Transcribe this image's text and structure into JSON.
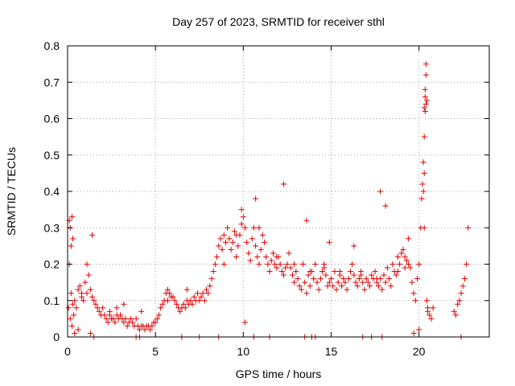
{
  "chart_data": {
    "type": "scatter",
    "title": "Day 257 of 2023, SRMTID for receiver sthl",
    "xlabel": "GPS time / hours",
    "ylabel": "SRMTID / TECUs",
    "xlim": [
      0,
      24
    ],
    "ylim": [
      0,
      0.8
    ],
    "xticks": [
      0,
      5,
      10,
      15,
      20
    ],
    "yticks": [
      0,
      0.1,
      0.2,
      0.3,
      0.4,
      0.5,
      0.6,
      0.7,
      0.8
    ],
    "xtick_labels": [
      "0",
      "5",
      "10",
      "15",
      "20"
    ],
    "ytick_labels": [
      "0",
      "0.1",
      "0.2",
      "0.3",
      "0.4",
      "0.5",
      "0.6",
      "0.7",
      "0.8"
    ],
    "grid": true,
    "marker": "+",
    "color": "#e00000",
    "series": [
      {
        "name": "SRMTID",
        "x": [
          0.05,
          0.1,
          0.15,
          0.2,
          0.25,
          0.3,
          0.35,
          0.4,
          0.5,
          0.6,
          0.7,
          0.8,
          0.9,
          1.0,
          1.1,
          1.2,
          1.3,
          1.4,
          1.5,
          1.6,
          1.7,
          1.8,
          1.9,
          2.0,
          2.1,
          2.2,
          2.3,
          2.4,
          2.5,
          2.6,
          2.7,
          2.8,
          2.9,
          3.0,
          3.1,
          3.2,
          3.3,
          3.4,
          3.5,
          3.6,
          3.7,
          3.8,
          3.9,
          4.0,
          4.1,
          4.2,
          4.3,
          4.4,
          4.5,
          4.6,
          4.7,
          4.8,
          4.9,
          5.0,
          5.1,
          5.2,
          5.3,
          5.4,
          5.5,
          5.6,
          5.7,
          5.8,
          5.9,
          6.0,
          6.1,
          6.2,
          6.3,
          6.4,
          6.5,
          6.6,
          6.7,
          6.8,
          6.9,
          7.0,
          7.1,
          7.2,
          7.3,
          7.4,
          7.5,
          7.6,
          7.7,
          7.8,
          7.9,
          8.0,
          8.1,
          8.2,
          8.3,
          8.4,
          8.5,
          8.6,
          8.7,
          8.8,
          8.9,
          9.0,
          9.1,
          9.2,
          9.3,
          9.4,
          9.5,
          9.6,
          9.7,
          9.8,
          9.9,
          10.0,
          10.1,
          10.2,
          10.3,
          10.4,
          10.5,
          10.6,
          10.7,
          10.8,
          10.9,
          11.0,
          11.1,
          11.2,
          11.3,
          11.4,
          11.5,
          11.6,
          11.7,
          11.8,
          11.9,
          12.0,
          12.1,
          12.2,
          12.3,
          12.4,
          12.5,
          12.6,
          12.7,
          12.8,
          12.9,
          13.0,
          13.1,
          13.2,
          13.3,
          13.4,
          13.5,
          13.6,
          13.7,
          13.8,
          13.9,
          14.0,
          14.1,
          14.2,
          14.3,
          14.4,
          14.5,
          14.6,
          14.7,
          14.8,
          14.9,
          15.0,
          15.1,
          15.2,
          15.3,
          15.4,
          15.5,
          15.6,
          15.7,
          15.8,
          15.9,
          16.0,
          16.1,
          16.2,
          16.3,
          16.4,
          16.5,
          16.6,
          16.7,
          16.8,
          16.9,
          17.0,
          17.1,
          17.2,
          17.3,
          17.4,
          17.5,
          17.6,
          17.7,
          17.8,
          17.9,
          18.0,
          18.1,
          18.2,
          18.3,
          18.4,
          18.5,
          18.6,
          18.7,
          18.8,
          18.9,
          19.0,
          19.1,
          19.2,
          19.3,
          19.4,
          19.5,
          19.6,
          19.7,
          19.8,
          19.9,
          20.0,
          20.1,
          20.15,
          20.2,
          20.25,
          20.3,
          20.3,
          20.35,
          20.35,
          20.4,
          20.4,
          20.45,
          20.5,
          20.6,
          20.7,
          20.8,
          22.0,
          22.1,
          22.2,
          22.3,
          22.4,
          22.5,
          22.6,
          22.7,
          22.8,
          0.1,
          0.2,
          0.3,
          0.6,
          1.3,
          1.5,
          3.9,
          4.1,
          6.5,
          7.5,
          8.6,
          10.1,
          10.6,
          11.5,
          13.5,
          13.9,
          14.1,
          16.8,
          17.3,
          17.9,
          19.7,
          20.0,
          22.4,
          0.15,
          0.25,
          1.4,
          2.8,
          3.2,
          4.2,
          9.9,
          10.7,
          12.3,
          13.6,
          14.9,
          16.3,
          17.8,
          18.1,
          19.4,
          20.3,
          0.4,
          0.8,
          1.1,
          2.4,
          5.7,
          6.8,
          8.9,
          9.6,
          10.9,
          11.9,
          12.9,
          13.8,
          14.6,
          15.5,
          16.7,
          17.6,
          18.8,
          19.2,
          20.25,
          20.4,
          20.45,
          20.35,
          20.3,
          20.5
        ],
        "y": [
          0.08,
          0.2,
          0.05,
          0.12,
          0.03,
          0.09,
          0.06,
          0.1,
          0.08,
          0.13,
          0.14,
          0.12,
          0.1,
          0.15,
          0.2,
          0.17,
          0.13,
          0.11,
          0.1,
          0.09,
          0.08,
          0.07,
          0.06,
          0.08,
          0.06,
          0.05,
          0.04,
          0.06,
          0.05,
          0.05,
          0.04,
          0.06,
          0.05,
          0.06,
          0.05,
          0.04,
          0.05,
          0.03,
          0.04,
          0.05,
          0.04,
          0.03,
          0.05,
          0.03,
          0.02,
          0.03,
          0.03,
          0.02,
          0.03,
          0.03,
          0.02,
          0.03,
          0.04,
          0.04,
          0.05,
          0.06,
          0.08,
          0.09,
          0.1,
          0.12,
          0.13,
          0.12,
          0.11,
          0.11,
          0.1,
          0.09,
          0.08,
          0.07,
          0.08,
          0.09,
          0.08,
          0.1,
          0.09,
          0.1,
          0.09,
          0.11,
          0.1,
          0.12,
          0.1,
          0.11,
          0.12,
          0.1,
          0.13,
          0.12,
          0.14,
          0.16,
          0.18,
          0.2,
          0.22,
          0.25,
          0.27,
          0.24,
          0.28,
          0.26,
          0.3,
          0.27,
          0.24,
          0.26,
          0.29,
          0.22,
          0.25,
          0.28,
          0.31,
          0.33,
          0.3,
          0.26,
          0.23,
          0.21,
          0.27,
          0.3,
          0.25,
          0.22,
          0.2,
          0.24,
          0.28,
          0.26,
          0.22,
          0.2,
          0.18,
          0.21,
          0.23,
          0.2,
          0.19,
          0.22,
          0.2,
          0.18,
          0.17,
          0.19,
          0.2,
          0.23,
          0.19,
          0.17,
          0.15,
          0.18,
          0.16,
          0.14,
          0.13,
          0.2,
          0.15,
          0.12,
          0.17,
          0.14,
          0.18,
          0.16,
          0.2,
          0.15,
          0.13,
          0.16,
          0.18,
          0.2,
          0.17,
          0.14,
          0.15,
          0.16,
          0.14,
          0.18,
          0.13,
          0.15,
          0.17,
          0.14,
          0.16,
          0.15,
          0.13,
          0.16,
          0.18,
          0.2,
          0.17,
          0.15,
          0.14,
          0.16,
          0.18,
          0.15,
          0.13,
          0.16,
          0.15,
          0.14,
          0.17,
          0.16,
          0.18,
          0.15,
          0.14,
          0.16,
          0.13,
          0.17,
          0.15,
          0.19,
          0.16,
          0.14,
          0.2,
          0.18,
          0.17,
          0.22,
          0.2,
          0.23,
          0.24,
          0.22,
          0.21,
          0.2,
          0.19,
          0.15,
          0.12,
          0.1,
          0.16,
          0.2,
          0.3,
          0.38,
          0.42,
          0.48,
          0.55,
          0.63,
          0.66,
          0.68,
          0.72,
          0.75,
          0.1,
          0.08,
          0.06,
          0.05,
          0.08,
          0.07,
          0.06,
          0.09,
          0.1,
          0.12,
          0.14,
          0.16,
          0.2,
          0.3,
          0.32,
          0.25,
          0.27,
          0.02,
          0.01,
          0.0,
          0.0,
          0.0,
          0.0,
          0.0,
          0.0,
          0.04,
          0.0,
          0.0,
          0.0,
          0.0,
          0.0,
          0.0,
          0.0,
          0.0,
          0.01,
          0.02,
          0.0,
          0.3,
          0.33,
          0.28,
          0.08,
          0.09,
          0.07,
          0.35,
          0.38,
          0.42,
          0.32,
          0.26,
          0.25,
          0.4,
          0.36,
          0.27,
          0.3,
          0.01,
          0.11,
          0.12,
          0.07,
          0.1,
          0.13,
          0.2,
          0.28,
          0.3,
          0.22,
          0.2,
          0.18,
          0.19,
          0.18,
          0.17,
          0.16,
          0.18,
          0.19,
          0.4,
          0.64,
          0.65,
          0.62,
          0.45,
          0.07
        ]
      }
    ]
  }
}
